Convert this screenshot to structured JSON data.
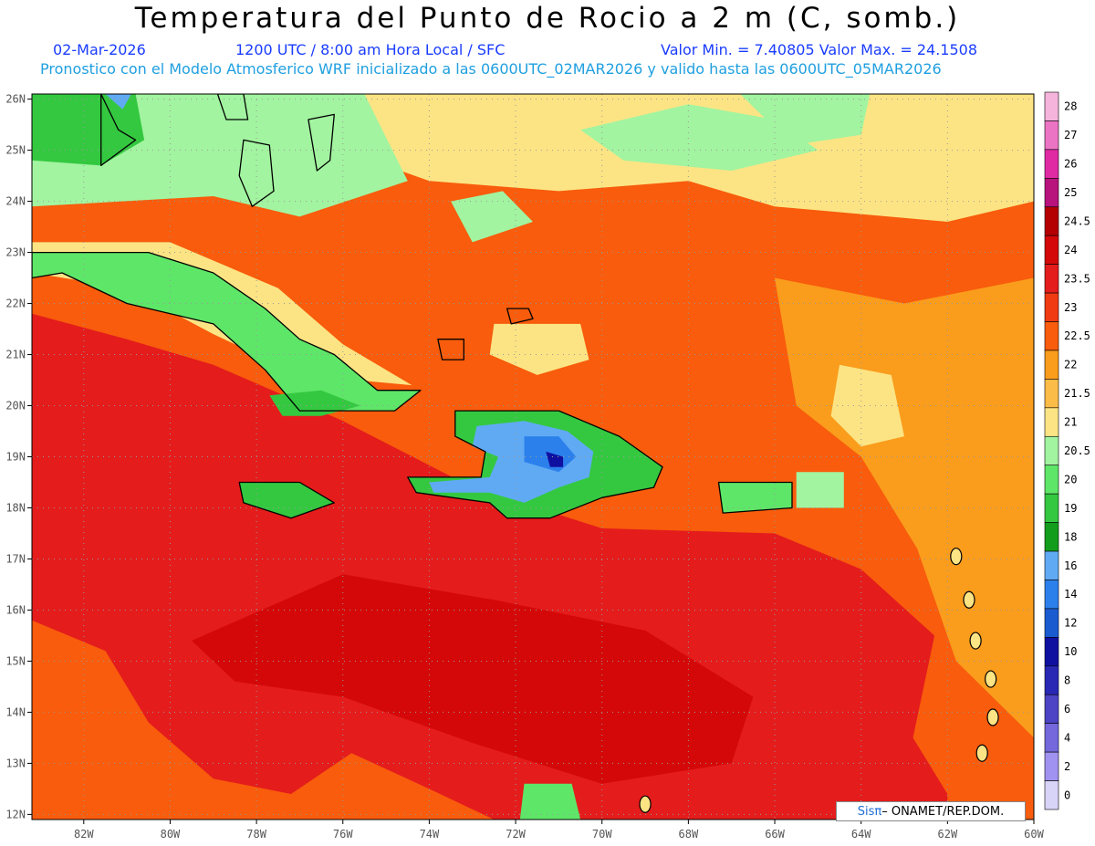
{
  "header": {
    "title": "Temperatura del Punto de Rocio a 2 m (C, somb.)",
    "date": "02-Mar-2026",
    "time": "1200 UTC / 8:00 am Hora Local / SFC",
    "min_max": "Valor Min. = 7.40805  Valor Max. = 24.1508",
    "model_info": "Pronostico con el Modelo Atmosferico WRF inicializado a las 0600UTC_02MAR2026 y valido hasta las  0600UTC_05MAR2026"
  },
  "axes": {
    "lon_labels": [
      "82W",
      "80W",
      "78W",
      "76W",
      "74W",
      "72W",
      "70W",
      "68W",
      "66W",
      "64W",
      "62W",
      "60W"
    ],
    "lat_labels": [
      "26N",
      "25N",
      "24N",
      "23N",
      "22N",
      "21N",
      "20N",
      "19N",
      "18N",
      "17N",
      "16N",
      "15N",
      "14N",
      "13N",
      "12N"
    ],
    "lon_range": [
      -83.2,
      -60
    ],
    "lat_range": [
      11.9,
      26.1
    ]
  },
  "legend": {
    "levels": [
      {
        "label": "28",
        "color": "#f4b4dc"
      },
      {
        "label": "27",
        "color": "#ec74c4"
      },
      {
        "label": "26",
        "color": "#e02aa4"
      },
      {
        "label": "25",
        "color": "#b8127c"
      },
      {
        "label": "24.5",
        "color": "#b40000"
      },
      {
        "label": "24",
        "color": "#d40808"
      },
      {
        "label": "23.5",
        "color": "#e41c1c"
      },
      {
        "label": "23",
        "color": "#f03a12"
      },
      {
        "label": "22.5",
        "color": "#f85c0c"
      },
      {
        "label": "22",
        "color": "#fa9c1c"
      },
      {
        "label": "21.5",
        "color": "#fcbc48"
      },
      {
        "label": "21",
        "color": "#fce484"
      },
      {
        "label": "20.5",
        "color": "#a2f4a0"
      },
      {
        "label": "20",
        "color": "#5ee668"
      },
      {
        "label": "19",
        "color": "#34c840"
      },
      {
        "label": "18",
        "color": "#129e1c"
      },
      {
        "label": "16",
        "color": "#60aaf4"
      },
      {
        "label": "14",
        "color": "#2c80ec"
      },
      {
        "label": "12",
        "color": "#1a5cd0"
      },
      {
        "label": "10",
        "color": "#1010a0"
      },
      {
        "label": "8",
        "color": "#2828b4"
      },
      {
        "label": "6",
        "color": "#4c44c4"
      },
      {
        "label": "4",
        "color": "#7468dc"
      },
      {
        "label": "2",
        "color": "#a092f0"
      },
      {
        "label": "0",
        "color": "#d8d4f8"
      }
    ]
  },
  "watermark": {
    "brand": "Sisπ",
    "org": " – ONAMET/REP.DOM."
  },
  "regions": [
    {
      "name": "base-field",
      "value": "22.5",
      "points": [
        [
          -83.2,
          26.1
        ],
        [
          -60,
          26.1
        ],
        [
          -60,
          11.9
        ],
        [
          -83.2,
          11.9
        ]
      ]
    },
    {
      "name": "north-atlantic-light",
      "value": "21",
      "points": [
        [
          -76,
          26.1
        ],
        [
          -60,
          26.1
        ],
        [
          -60,
          24
        ],
        [
          -62,
          23.6
        ],
        [
          -66,
          23.9
        ],
        [
          -68,
          24.4
        ],
        [
          -71,
          24.2
        ],
        [
          -74,
          24.4
        ],
        [
          -76,
          25
        ]
      ]
    },
    {
      "name": "north-green",
      "value": "20.5",
      "points": [
        [
          -70.5,
          25.4
        ],
        [
          -68,
          25.9
        ],
        [
          -66,
          25.6
        ],
        [
          -65,
          25
        ],
        [
          -67,
          24.6
        ],
        [
          -69.5,
          24.8
        ]
      ]
    },
    {
      "name": "north-green-east",
      "value": "20.5",
      "points": [
        [
          -66.8,
          26.1
        ],
        [
          -63.8,
          26.1
        ],
        [
          -64,
          25.3
        ],
        [
          -65.6,
          25.1
        ]
      ]
    },
    {
      "name": "bahamas-green",
      "value": "20.5",
      "points": [
        [
          -83.2,
          26.1
        ],
        [
          -75.5,
          26.1
        ],
        [
          -74.5,
          24.4
        ],
        [
          -77,
          23.7
        ],
        [
          -79,
          24.1
        ],
        [
          -83.2,
          23.9
        ]
      ]
    },
    {
      "name": "florida-green",
      "value": "19",
      "points": [
        [
          -83.2,
          26.1
        ],
        [
          -80.8,
          26.1
        ],
        [
          -80.6,
          25.2
        ],
        [
          -81.6,
          24.7
        ],
        [
          -83.2,
          24.8
        ]
      ]
    },
    {
      "name": "florida-blue",
      "value": "16",
      "points": [
        [
          -81.5,
          26.1
        ],
        [
          -80.9,
          26.1
        ],
        [
          -81.1,
          25.8
        ]
      ]
    },
    {
      "name": "west-red",
      "value": "23.5",
      "points": [
        [
          -83.2,
          21.8
        ],
        [
          -81,
          21.3
        ],
        [
          -79,
          20.8
        ],
        [
          -76,
          19.7
        ],
        [
          -73,
          18.4
        ],
        [
          -70,
          17.6
        ],
        [
          -66,
          17.5
        ],
        [
          -64,
          16.8
        ],
        [
          -62.3,
          15.5
        ],
        [
          -62.8,
          13.5
        ],
        [
          -62,
          12.4
        ],
        [
          -62,
          11.9
        ],
        [
          -83.2,
          11.9
        ]
      ]
    },
    {
      "name": "caribbean-orange-south",
      "value": "22.5",
      "points": [
        [
          -83.2,
          15.8
        ],
        [
          -81.5,
          15.2
        ],
        [
          -80.5,
          13.8
        ],
        [
          -79,
          12.7
        ],
        [
          -77.2,
          12.4
        ],
        [
          -75.8,
          13.2
        ],
        [
          -74,
          12.5
        ],
        [
          -72.5,
          11.9
        ],
        [
          -83.2,
          11.9
        ]
      ]
    },
    {
      "name": "central-dark",
      "value": "24",
      "points": [
        [
          -79.5,
          15.4
        ],
        [
          -76,
          16.7
        ],
        [
          -72.5,
          16.2
        ],
        [
          -69,
          15.6
        ],
        [
          -66.5,
          14.3
        ],
        [
          -67,
          13
        ],
        [
          -70,
          12.6
        ],
        [
          -73,
          13.4
        ],
        [
          -76,
          14.3
        ],
        [
          -78.5,
          14.6
        ]
      ]
    },
    {
      "name": "east-orange",
      "value": "22",
      "points": [
        [
          -66,
          22.5
        ],
        [
          -63,
          22
        ],
        [
          -60,
          22.5
        ],
        [
          -60,
          13.5
        ],
        [
          -61.8,
          15
        ],
        [
          -62.7,
          17.2
        ],
        [
          -64,
          19
        ],
        [
          -65.5,
          20
        ]
      ]
    },
    {
      "name": "east-light",
      "value": "21",
      "points": [
        [
          -64.5,
          20.8
        ],
        [
          -63.3,
          20.6
        ],
        [
          -63,
          19.4
        ],
        [
          -64,
          19.2
        ],
        [
          -64.7,
          19.8
        ]
      ]
    },
    {
      "name": "cuba-light",
      "value": "21",
      "points": [
        [
          -83.2,
          23.2
        ],
        [
          -80,
          23.2
        ],
        [
          -77.5,
          22.3
        ],
        [
          -76,
          21.2
        ],
        [
          -74.4,
          20.4
        ],
        [
          -77,
          20.6
        ],
        [
          -79,
          21.4
        ],
        [
          -81,
          22.3
        ],
        [
          -83.2,
          22.6
        ]
      ]
    },
    {
      "name": "cuba",
      "value": "20",
      "points": [
        [
          -83.2,
          23
        ],
        [
          -80.5,
          23
        ],
        [
          -79,
          22.6
        ],
        [
          -77.8,
          21.9
        ],
        [
          -77,
          21.3
        ],
        [
          -76.2,
          21
        ],
        [
          -75.2,
          20.3
        ],
        [
          -74.2,
          20.3
        ],
        [
          -74.8,
          19.9
        ],
        [
          -77,
          19.9
        ],
        [
          -77.8,
          20.7
        ],
        [
          -79,
          21.6
        ],
        [
          -81,
          22
        ],
        [
          -82.5,
          22.6
        ],
        [
          -83.2,
          22.5
        ]
      ]
    },
    {
      "name": "cuba-east-dark",
      "value": "19",
      "points": [
        [
          -77.7,
          20.2
        ],
        [
          -76.5,
          20.3
        ],
        [
          -75.6,
          20
        ],
        [
          -76.5,
          19.8
        ],
        [
          -77.4,
          19.8
        ]
      ]
    },
    {
      "name": "hispaniola-green",
      "value": "19",
      "points": [
        [
          -73.4,
          19.9
        ],
        [
          -71,
          19.9
        ],
        [
          -69.6,
          19.4
        ],
        [
          -68.6,
          18.8
        ],
        [
          -68.8,
          18.4
        ],
        [
          -70,
          18.2
        ],
        [
          -71.2,
          17.8
        ],
        [
          -72.2,
          17.8
        ],
        [
          -72.6,
          18.1
        ],
        [
          -74.3,
          18.3
        ],
        [
          -74.5,
          18.6
        ],
        [
          -72.8,
          18.6
        ],
        [
          -72.7,
          19.1
        ],
        [
          -73.4,
          19.4
        ]
      ]
    },
    {
      "name": "hispaniola-blue",
      "value": "16",
      "points": [
        [
          -72.9,
          19.6
        ],
        [
          -71.8,
          19.7
        ],
        [
          -70.8,
          19.5
        ],
        [
          -70.2,
          19.1
        ],
        [
          -70.3,
          18.6
        ],
        [
          -71,
          18.4
        ],
        [
          -71.8,
          18.1
        ],
        [
          -72.6,
          18.3
        ],
        [
          -73.9,
          18.3
        ],
        [
          -74,
          18.5
        ],
        [
          -72.6,
          18.6
        ],
        [
          -72.4,
          19
        ],
        [
          -73,
          19.2
        ]
      ]
    },
    {
      "name": "hispaniola-blue-dark",
      "value": "14",
      "points": [
        [
          -71.8,
          19.4
        ],
        [
          -71,
          19.4
        ],
        [
          -70.6,
          19
        ],
        [
          -71,
          18.7
        ],
        [
          -71.8,
          18.9
        ]
      ]
    },
    {
      "name": "hispaniola-core",
      "value": "10",
      "points": [
        [
          -71.3,
          19.1
        ],
        [
          -70.9,
          19
        ],
        [
          -70.9,
          18.8
        ],
        [
          -71.2,
          18.8
        ]
      ]
    },
    {
      "name": "jamaica",
      "value": "19",
      "points": [
        [
          -78.4,
          18.5
        ],
        [
          -77,
          18.5
        ],
        [
          -76.2,
          18.1
        ],
        [
          -77.2,
          17.8
        ],
        [
          -78.3,
          18.1
        ]
      ]
    },
    {
      "name": "puerto-rico",
      "value": "20",
      "points": [
        [
          -67.3,
          18.5
        ],
        [
          -65.6,
          18.5
        ],
        [
          -65.6,
          18
        ],
        [
          -67.2,
          17.9
        ]
      ]
    },
    {
      "name": "pr-east-light",
      "value": "20.5",
      "points": [
        [
          -65.5,
          18.7
        ],
        [
          -64.4,
          18.7
        ],
        [
          -64.4,
          18
        ],
        [
          -65.5,
          18
        ]
      ]
    },
    {
      "name": "turks-patch",
      "value": "21",
      "points": [
        [
          -72.5,
          21.6
        ],
        [
          -70.5,
          21.6
        ],
        [
          -70.3,
          20.9
        ],
        [
          -71.5,
          20.6
        ],
        [
          -72.6,
          21
        ]
      ]
    },
    {
      "name": "bahamas-east-green",
      "value": "20.5",
      "points": [
        [
          -73.5,
          24
        ],
        [
          -72.3,
          24.2
        ],
        [
          -71.6,
          23.6
        ],
        [
          -73,
          23.2
        ]
      ]
    },
    {
      "name": "san-andres-green",
      "value": "20",
      "points": [
        [
          -71.8,
          12.6
        ],
        [
          -70.7,
          12.6
        ],
        [
          -70.5,
          11.9
        ],
        [
          -71.9,
          11.9
        ]
      ]
    }
  ],
  "coast": [
    {
      "name": "cuba-coast",
      "points": [
        [
          -83.2,
          23
        ],
        [
          -80.5,
          23
        ],
        [
          -79,
          22.6
        ],
        [
          -77.8,
          21.9
        ],
        [
          -77,
          21.3
        ],
        [
          -76.2,
          21
        ],
        [
          -75.2,
          20.3
        ],
        [
          -74.2,
          20.3
        ],
        [
          -74.8,
          19.9
        ],
        [
          -77,
          19.9
        ],
        [
          -77.8,
          20.7
        ],
        [
          -79,
          21.6
        ],
        [
          -81,
          22
        ],
        [
          -82.5,
          22.6
        ],
        [
          -83.2,
          22.5
        ]
      ]
    },
    {
      "name": "hispaniola-coast",
      "points": [
        [
          -73.4,
          19.9
        ],
        [
          -71,
          19.9
        ],
        [
          -69.6,
          19.4
        ],
        [
          -68.6,
          18.8
        ],
        [
          -68.8,
          18.4
        ],
        [
          -70,
          18.2
        ],
        [
          -71.2,
          17.8
        ],
        [
          -72.2,
          17.8
        ],
        [
          -72.6,
          18.1
        ],
        [
          -74.3,
          18.3
        ],
        [
          -74.5,
          18.6
        ],
        [
          -72.8,
          18.6
        ],
        [
          -72.7,
          19.1
        ],
        [
          -73.4,
          19.4
        ]
      ]
    },
    {
      "name": "jamaica-coast",
      "points": [
        [
          -78.4,
          18.5
        ],
        [
          -77,
          18.5
        ],
        [
          -76.2,
          18.1
        ],
        [
          -77.2,
          17.8
        ],
        [
          -78.3,
          18.1
        ]
      ]
    },
    {
      "name": "puerto-rico-coast",
      "points": [
        [
          -67.3,
          18.5
        ],
        [
          -65.6,
          18.5
        ],
        [
          -65.6,
          18
        ],
        [
          -67.2,
          17.9
        ]
      ]
    },
    {
      "name": "florida-coast",
      "points": [
        [
          -81.6,
          26.1
        ],
        [
          -81.2,
          25.4
        ],
        [
          -80.8,
          25.2
        ],
        [
          -81.6,
          24.7
        ]
      ]
    },
    {
      "name": "andros-coast",
      "points": [
        [
          -78.3,
          25.2
        ],
        [
          -77.7,
          25.1
        ],
        [
          -77.6,
          24.2
        ],
        [
          -78.1,
          23.9
        ],
        [
          -78.4,
          24.5
        ]
      ]
    },
    {
      "name": "grand-bahama-coast",
      "points": [
        [
          -78.9,
          26.1
        ],
        [
          -78.3,
          26.1
        ],
        [
          -78.2,
          25.6
        ],
        [
          -78.7,
          25.6
        ]
      ]
    },
    {
      "name": "eleuthera-coast",
      "points": [
        [
          -76.8,
          25.6
        ],
        [
          -76.2,
          25.7
        ],
        [
          -76.3,
          24.8
        ],
        [
          -76.6,
          24.6
        ]
      ]
    },
    {
      "name": "great-inagua-coast",
      "points": [
        [
          -73.8,
          21.3
        ],
        [
          -73.2,
          21.3
        ],
        [
          -73.2,
          20.9
        ],
        [
          -73.7,
          20.9
        ]
      ]
    },
    {
      "name": "turks-coast",
      "points": [
        [
          -72.2,
          21.9
        ],
        [
          -71.7,
          21.9
        ],
        [
          -71.6,
          21.7
        ],
        [
          -72.1,
          21.6
        ]
      ]
    }
  ],
  "islands": [
    {
      "name": "guadeloupe",
      "lon": -61.5,
      "lat": 16.2
    },
    {
      "name": "dominica",
      "lon": -61.35,
      "lat": 15.4
    },
    {
      "name": "martinique",
      "lon": -61,
      "lat": 14.65
    },
    {
      "name": "st-lucia",
      "lon": -60.95,
      "lat": 13.9
    },
    {
      "name": "st-vincent",
      "lon": -61.2,
      "lat": 13.2
    },
    {
      "name": "antigua",
      "lon": -61.8,
      "lat": 17.05
    },
    {
      "name": "aruba-curacao",
      "lon": -69,
      "lat": 12.2
    }
  ]
}
